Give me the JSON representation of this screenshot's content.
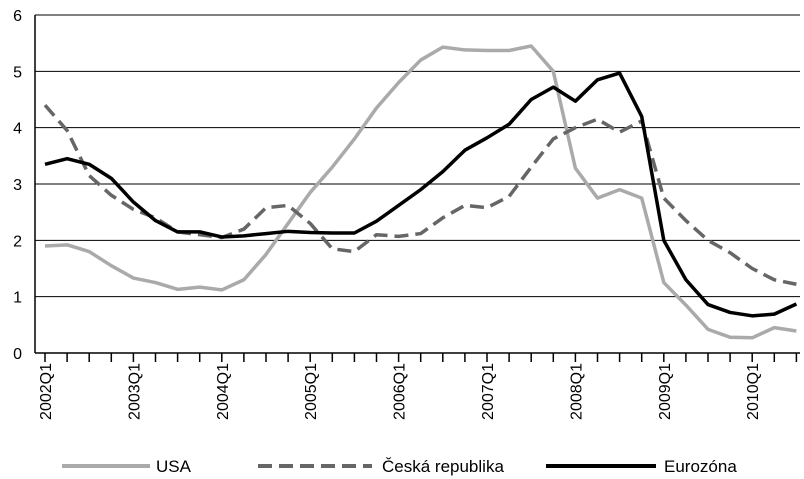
{
  "chart_data": {
    "type": "line",
    "categories": [
      "2002Q1",
      null,
      null,
      null,
      "2003Q1",
      null,
      null,
      null,
      "2004Q1",
      null,
      null,
      null,
      "2005Q1",
      null,
      null,
      null,
      "2006Q1",
      null,
      null,
      null,
      "2007Q1",
      null,
      null,
      null,
      "2008Q1",
      null,
      null,
      null,
      "2009Q1",
      null,
      null,
      null,
      "2010Q1",
      null,
      null
    ],
    "series": [
      {
        "name": "USA",
        "color": "#aaaaaa",
        "style": "solid",
        "values": [
          1.9,
          1.92,
          1.8,
          1.55,
          1.33,
          1.25,
          1.13,
          1.17,
          1.12,
          1.3,
          1.75,
          2.3,
          2.85,
          3.3,
          3.8,
          4.35,
          4.8,
          5.2,
          5.43,
          5.38,
          5.37,
          5.37,
          5.45,
          5.0,
          3.28,
          2.75,
          2.9,
          2.75,
          1.25,
          0.85,
          0.42,
          0.28,
          0.27,
          0.45,
          0.39
        ]
      },
      {
        "name": "Česká republika",
        "color": "#666666",
        "style": "dashed",
        "values": [
          4.4,
          3.95,
          3.15,
          2.8,
          2.55,
          2.4,
          2.15,
          2.1,
          2.05,
          2.2,
          2.58,
          2.62,
          2.3,
          1.85,
          1.8,
          2.1,
          2.07,
          2.12,
          2.4,
          2.62,
          2.58,
          2.78,
          3.3,
          3.8,
          4.0,
          4.15,
          3.92,
          4.12,
          2.75,
          2.35,
          2.0,
          1.78,
          1.5,
          1.3,
          1.22
        ]
      },
      {
        "name": "Eurozóna",
        "color": "#000000",
        "style": "solid",
        "values": [
          3.35,
          3.45,
          3.35,
          3.1,
          2.68,
          2.35,
          2.15,
          2.15,
          2.06,
          2.08,
          2.12,
          2.16,
          2.14,
          2.13,
          2.13,
          2.34,
          2.62,
          2.9,
          3.22,
          3.6,
          3.82,
          4.06,
          4.5,
          4.72,
          4.47,
          4.85,
          4.97,
          4.2,
          2.0,
          1.3,
          0.86,
          0.72,
          0.66,
          0.69,
          0.87
        ]
      }
    ],
    "ylim": [
      0,
      6
    ],
    "yticks": [
      0,
      1,
      2,
      3,
      4,
      5,
      6
    ],
    "grid": true,
    "legend": "bottom"
  }
}
